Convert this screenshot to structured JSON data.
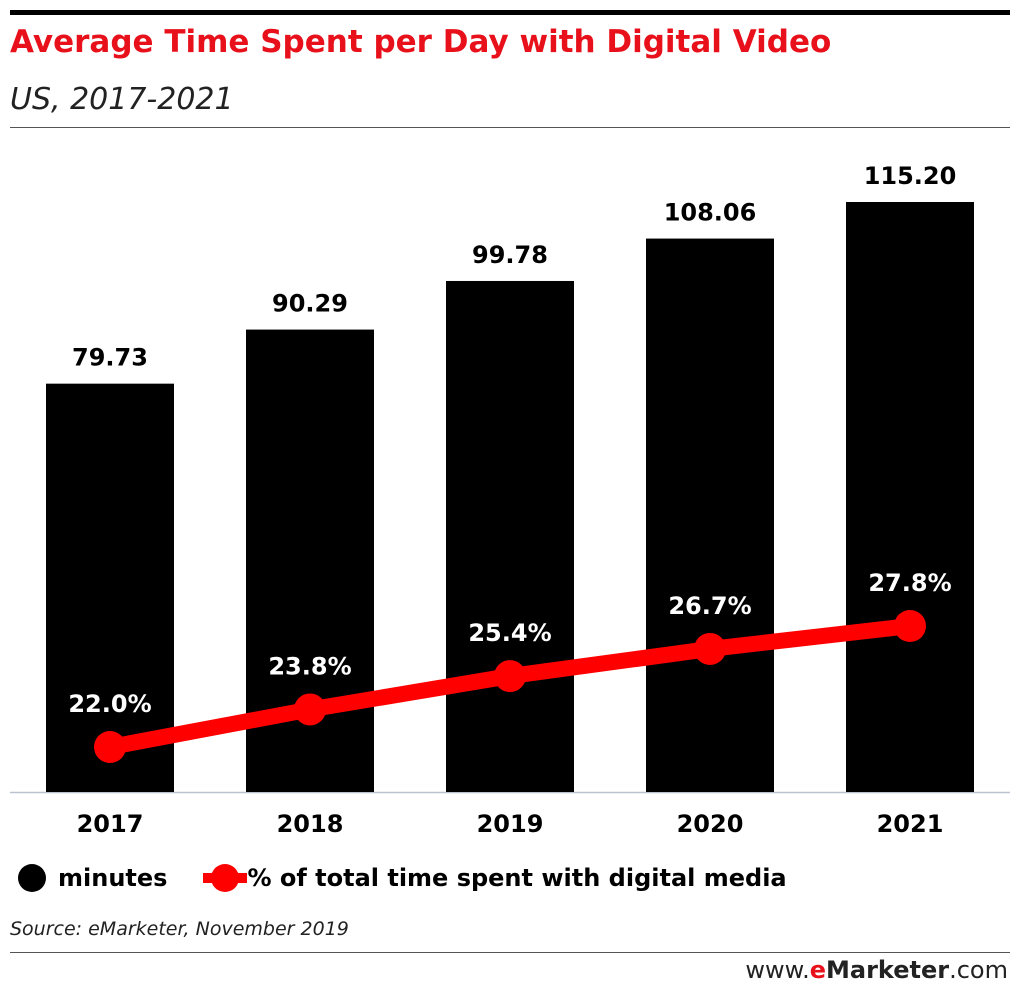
{
  "header": {
    "title": "Average Time Spent per Day with Digital Video",
    "subtitle": "US, 2017-2021"
  },
  "colors": {
    "title": "#e8101b",
    "bars": "#000000",
    "line": "#ff0000"
  },
  "legend": {
    "bars_label": "minutes",
    "line_label": "% of total time spent with digital media"
  },
  "footer": {
    "source": "Source: eMarketer, November 2019",
    "brand_prefix": "www.",
    "brand_e": "e",
    "brand_name": "Marketer",
    "brand_suffix": ".com"
  },
  "chart_data": {
    "type": "bar",
    "categories": [
      "2017",
      "2018",
      "2019",
      "2020",
      "2021"
    ],
    "series": [
      {
        "name": "minutes",
        "type": "bar",
        "values": [
          79.73,
          90.29,
          99.78,
          108.06,
          115.2
        ],
        "labels": [
          "79.73",
          "90.29",
          "99.78",
          "108.06",
          "115.20"
        ]
      },
      {
        "name": "% of total time spent with digital media",
        "type": "line",
        "values": [
          22.0,
          23.8,
          25.4,
          26.7,
          27.8
        ],
        "labels": [
          "22.0%",
          "23.8%",
          "25.4%",
          "26.7%",
          "27.8%"
        ]
      }
    ],
    "title": "Average Time Spent per Day with Digital Video",
    "subtitle": "US, 2017-2021",
    "xlabel": "",
    "ylabel": "",
    "grid": false,
    "legend_position": "bottom-left"
  }
}
